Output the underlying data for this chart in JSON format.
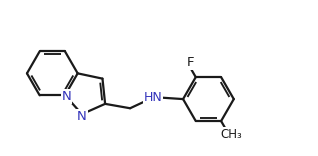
{
  "bond_color": "#1a1a1a",
  "atom_color_N": "#3333bb",
  "atom_color_F": "#1a1a1a",
  "background_color": "#ffffff",
  "bond_lw": 1.6,
  "label_fs": 9.5,
  "xlim": [
    0,
    10
  ],
  "ylim": [
    0,
    5
  ]
}
